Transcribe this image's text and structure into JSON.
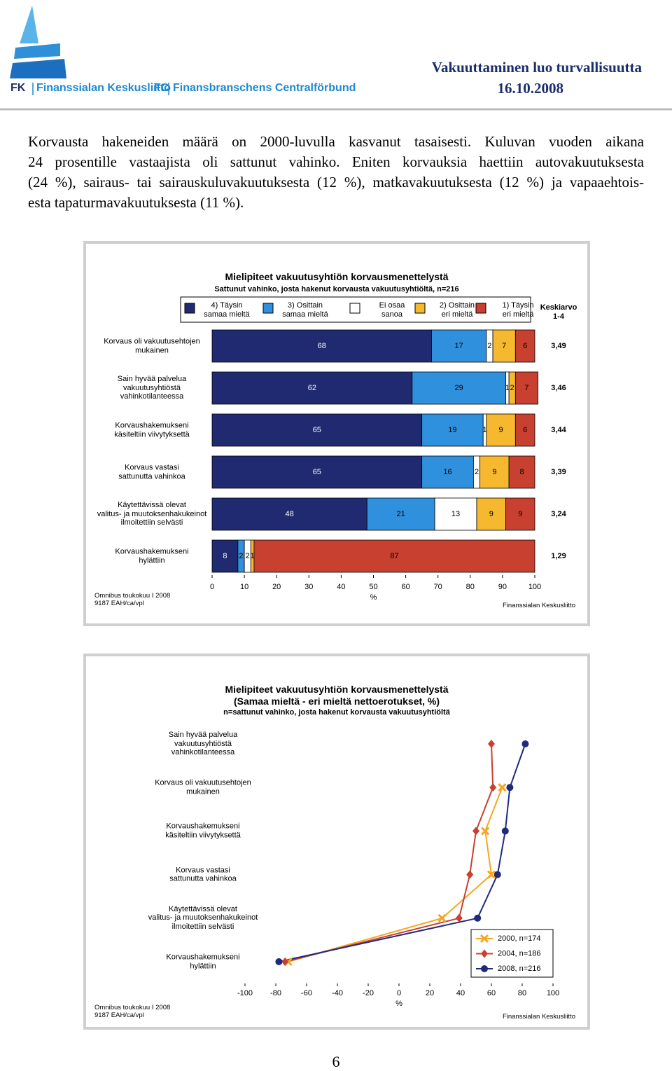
{
  "header": {
    "logo": [
      "FK",
      "Finanssialan Keskusliitto",
      "FC",
      "Finansbranschens Centralförbund"
    ],
    "title": "Vakuuttaminen luo turvallisuutta",
    "date": "16.10.2008"
  },
  "body": {
    "lines": [
      "Korvausta hakeneiden määrä on 2000-luvulla kasvanut tasaisesti. Kuluvan vuoden aikana",
      "24 prosentille vastaajista oli sattunut vahinko. Eniten korvauksia haettiin autovakuutuksesta",
      "(24 %), sairaus- tai sairauskuluvakuutuksesta (12 %), matkavakuutuksesta (12 %) ja vapaaehtois-",
      "esta tapaturmavakuutuksesta (11 %)."
    ]
  },
  "chart_data": [
    {
      "type": "bar",
      "orientation": "horizontal",
      "stacked": true,
      "title": "Mielipiteet vakuutusyhtiön korvausmenettelystä",
      "subtitle": "Sattunut vahinko, josta hakenut korvausta vakuutusyhtiöltä, n=216",
      "categories": [
        "Korvaus oli vakuutusehtojen\nmukainen",
        "Sain hyvää palvelua\nvakuutusyhtiöstä\nvahinkotilanteessa",
        "Korvaushakemukseni\nkäsiteltiin viivytyksettä",
        "Korvaus vastasi\nsattunutta vahinkoa",
        "Käytettävissä olevat\nvalitus- ja muutoksenhakukeinot\nilmoitettiin selvästi",
        "Korvaushakemukseni\nhylättiin"
      ],
      "series": [
        {
          "name": "4) Täysin\nsamaa mieltä",
          "color": "#202a70",
          "values": [
            68,
            62,
            65,
            65,
            48,
            8
          ]
        },
        {
          "name": "3) Osittain\nsamaa mieltä",
          "color": "#2f90de",
          "values": [
            17,
            29,
            19,
            16,
            21,
            2
          ]
        },
        {
          "name": "Ei osaa\nsanoa",
          "color": "#ffffff",
          "values": [
            2,
            1,
            1,
            2,
            13,
            2
          ]
        },
        {
          "name": "2) Osittain\neri mieltä",
          "color": "#f5b82e",
          "values": [
            7,
            2,
            9,
            9,
            9,
            1
          ]
        },
        {
          "name": "1) Täysin\neri mieltä",
          "color": "#c8402f",
          "values": [
            6,
            7,
            6,
            8,
            9,
            87
          ]
        }
      ],
      "means_title": "Keskiarvo\n1-4",
      "means": [
        "3,49",
        "3,46",
        "3,44",
        "3,39",
        "3,24",
        "1,29"
      ],
      "xlim": [
        0,
        100
      ],
      "xticks": [
        0,
        10,
        20,
        30,
        40,
        50,
        60,
        70,
        80,
        90,
        100
      ],
      "xlabel": "%",
      "source": "Omnibus toukokuu I 2008\n9187 EAH/ca/vpl",
      "credit": "Finanssialan Keskusliitto"
    },
    {
      "type": "line",
      "orientation": "horizontal",
      "title": "Mielipiteet vakuutusyhtiön korvausmenettelystä",
      "subtitle": "(Samaa mieltä - eri mieltä nettoerotukset, %)",
      "note": "n=sattunut vahinko, josta hakenut korvausta vakuutusyhtiöltä",
      "categories": [
        "Sain hyvää palvelua\nvakuutusyhtiöstä\nvahinkotilanteessa",
        "Korvaus oli vakuutusehtojen\nmukainen",
        "Korvaushakemukseni\nkäsiteltiin viivytyksettä",
        "Korvaus vastasi\nsattunutta vahinkoa",
        "Käytettävissä olevat\nvalitus- ja muutoksenhakukeinot\nilmoitettiin selvästi",
        "Korvaushakemukseni\nhylättiin"
      ],
      "series": [
        {
          "name": "2000, n=174",
          "color": "#f5a623",
          "marker": "x",
          "values": [
            null,
            67,
            56,
            60,
            28,
            -72
          ]
        },
        {
          "name": "2004, n=186",
          "color": "#c8402f",
          "marker": "diamond",
          "values": [
            60,
            61,
            50,
            46,
            39,
            -74
          ]
        },
        {
          "name": "2008, n=216",
          "color": "#1f2a7e",
          "marker": "circle",
          "values": [
            82,
            72,
            69,
            64,
            51,
            -78
          ]
        }
      ],
      "xlim": [
        -100,
        100
      ],
      "xticks": [
        -100,
        -80,
        -60,
        -40,
        -20,
        0,
        20,
        40,
        60,
        80,
        100
      ],
      "xlabel": "%",
      "source": "Omnibus toukokuu I 2008\n9187 EAH/ca/vpl",
      "credit": "Finanssialan Keskusliitto"
    }
  ],
  "page_number": 6
}
